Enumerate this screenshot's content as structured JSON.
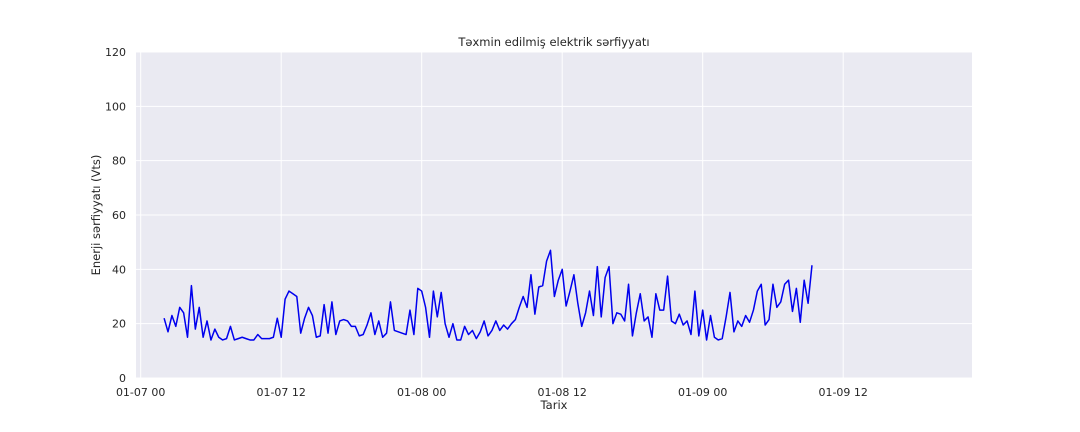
{
  "chart_data": {
    "type": "line",
    "title": "Təxmin edilmiş elektrik sərfiyyatı",
    "xlabel": "Tarix",
    "ylabel": "Enerji sərfiyyatı (Vts)",
    "ylim": [
      0,
      120
    ],
    "yticks": [
      0,
      20,
      40,
      60,
      80,
      100,
      120
    ],
    "xlim": [
      "2024-01-06T23:36",
      "2024-01-09T23:00"
    ],
    "xticks": [
      {
        "t": "2024-01-07T00:00",
        "label": "01-07 00"
      },
      {
        "t": "2024-01-07T12:00",
        "label": "01-07 12"
      },
      {
        "t": "2024-01-08T00:00",
        "label": "01-08 00"
      },
      {
        "t": "2024-01-08T12:00",
        "label": "01-08 12"
      },
      {
        "t": "2024-01-09T00:00",
        "label": "01-09 00"
      },
      {
        "t": "2024-01-09T12:00",
        "label": "01-09 12"
      }
    ],
    "grid": true,
    "series": [
      {
        "color": "#0000ee",
        "start": "2024-01-07T02:00",
        "interval_minutes": 20,
        "values": [
          22,
          17,
          23,
          19,
          26,
          24,
          15,
          34,
          18,
          26,
          15,
          21,
          14,
          18,
          15,
          14,
          14.5,
          19,
          14,
          14.5,
          15,
          14.5,
          14,
          14,
          16,
          14.5,
          14.5,
          14.5,
          15,
          22,
          15,
          29,
          32,
          31,
          30,
          16.5,
          22,
          26,
          23,
          15,
          15.5,
          27,
          16.5,
          28,
          16,
          21,
          21.5,
          21,
          19,
          19,
          15.5,
          16,
          19.5,
          24,
          16,
          21,
          15,
          16.5,
          28,
          17.5,
          17,
          16.5,
          16,
          25,
          16,
          33,
          32,
          26,
          15,
          32,
          22.5,
          31.5,
          20,
          15,
          20,
          14,
          14,
          19,
          16,
          17.5,
          14.5,
          17,
          21,
          15.5,
          17.5,
          21,
          17.5,
          19.5,
          18,
          20,
          21.5,
          26,
          30,
          26,
          38,
          23.5,
          33.5,
          34,
          43,
          47,
          30,
          36,
          40,
          26.5,
          32,
          38,
          27.5,
          19,
          24,
          32,
          23,
          41,
          22.5,
          37,
          41,
          20,
          24,
          23.5,
          21,
          34.5,
          15.5,
          24,
          31,
          21,
          22.5,
          15,
          31,
          25,
          25,
          37.5,
          21,
          20,
          23.5,
          19.5,
          21,
          16,
          32,
          15.5,
          25,
          14,
          23,
          15,
          14,
          14.5,
          22.5,
          31.5,
          17,
          21,
          19,
          23,
          20.5,
          25,
          32,
          34.5,
          19.5,
          21.5,
          34.5,
          26,
          28,
          34.5,
          36,
          24.5,
          33,
          20.5,
          36,
          27.5,
          41.5
        ]
      }
    ]
  }
}
